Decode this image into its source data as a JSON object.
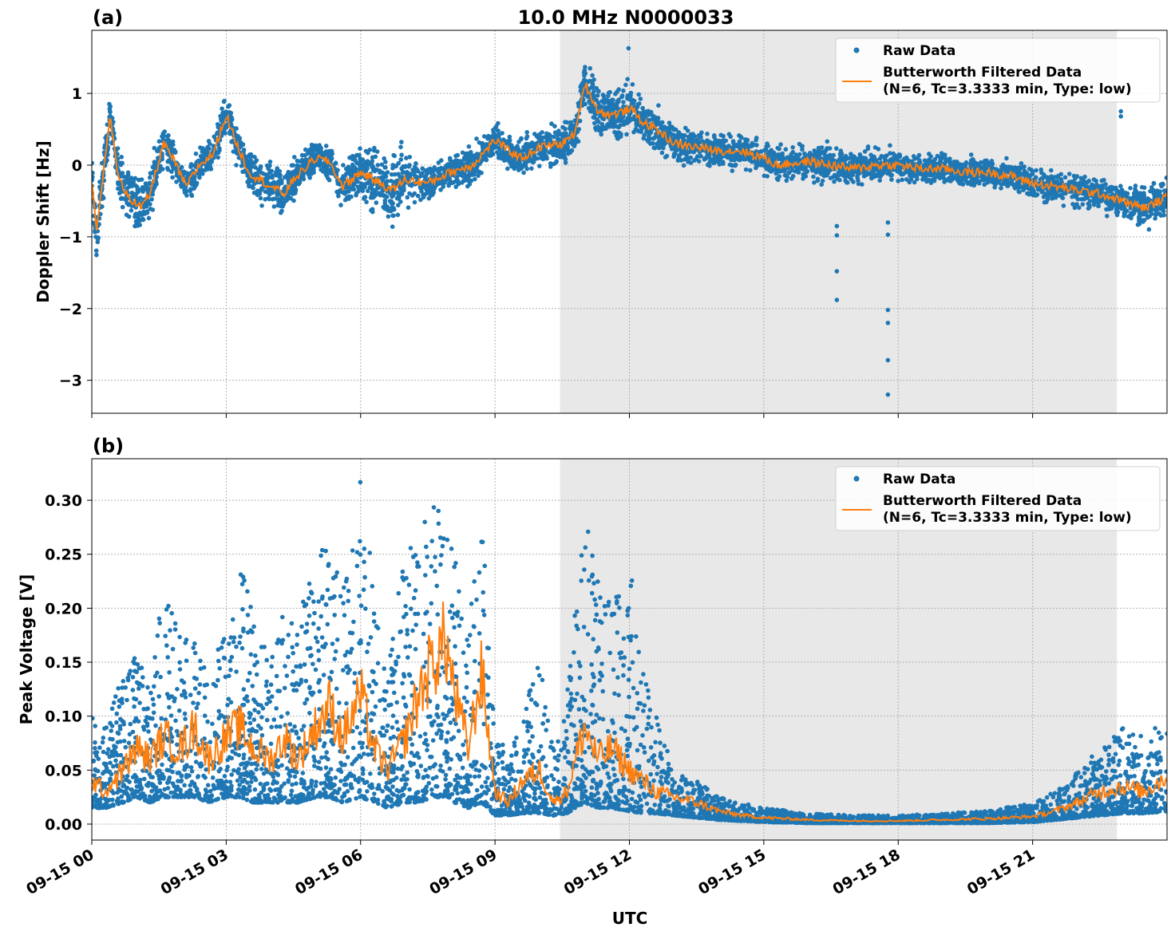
{
  "chart_data": [
    {
      "type": "scatter",
      "panel_label": "(a)",
      "title": "10.0 MHz N0000033",
      "ylabel": "Doppler Shift [Hz]",
      "xlabel": "",
      "x_unit": "hours UTC on 09-15",
      "xlim": [
        0,
        24
      ],
      "ylim": [
        -3.46,
        1.88
      ],
      "x_ticks": [
        0,
        3,
        6,
        9,
        12,
        15,
        18,
        21
      ],
      "x_tick_labels": [
        "09-15 00",
        "09-15 03",
        "09-15 06",
        "09-15 09",
        "09-15 12",
        "09-15 15",
        "09-15 18",
        "09-15 21"
      ],
      "y_ticks": [
        1,
        0,
        -1,
        -2,
        -3
      ],
      "y_tick_labels": [
        "1",
        "0",
        "−1",
        "−2",
        "−3"
      ],
      "grid": true,
      "shaded_interval": [
        10.45,
        22.88
      ],
      "legend_placement": "top-right",
      "series": [
        {
          "name": "Raw Data",
          "kind": "points",
          "color": "#1f77b4"
        },
        {
          "name": "Butterworth Filtered Data",
          "name_line2": "(N=6, Tc=3.3333 min, Type: low)",
          "kind": "line",
          "color": "#ff7f0e"
        }
      ],
      "filtered": {
        "x": [
          0,
          0.1,
          0.3,
          0.4,
          0.6,
          0.9,
          1.1,
          1.3,
          1.6,
          1.8,
          2.1,
          2.4,
          2.7,
          3.0,
          3.2,
          3.5,
          4,
          4.3,
          4.5,
          5,
          5.3,
          5.6,
          6.0,
          6.3,
          6.7,
          7.0,
          7.5,
          8,
          8.5,
          9.0,
          9.3,
          9.6,
          10,
          10.5,
          10.8,
          11.0,
          11.3,
          11.6,
          11.9,
          12.0,
          12.3,
          12.6,
          13,
          13.5,
          14,
          14.5,
          15,
          15.3,
          16,
          16.5,
          17,
          17.5,
          18,
          18.5,
          19,
          19.5,
          20,
          20.5,
          21,
          21.5,
          22,
          22.5,
          23,
          23.5,
          24
        ],
        "y": [
          -0.2,
          -0.95,
          0.1,
          0.7,
          -0.2,
          -0.5,
          -0.6,
          -0.4,
          0.3,
          0.1,
          -0.3,
          0.0,
          0.15,
          0.7,
          0.35,
          -0.1,
          -0.3,
          -0.4,
          -0.2,
          0.1,
          0.05,
          -0.3,
          -0.1,
          -0.2,
          -0.35,
          -0.2,
          -0.25,
          -0.1,
          0.0,
          0.35,
          0.2,
          0.1,
          0.25,
          0.3,
          0.45,
          1.15,
          0.75,
          0.7,
          0.75,
          0.8,
          0.6,
          0.5,
          0.3,
          0.25,
          0.2,
          0.2,
          0.1,
          0.0,
          0.05,
          0.0,
          -0.05,
          0.0,
          0.0,
          -0.05,
          -0.05,
          -0.1,
          -0.1,
          -0.15,
          -0.25,
          -0.3,
          -0.35,
          -0.4,
          -0.5,
          -0.6,
          -0.45
        ]
      },
      "raw_spread": [
        0.5,
        0.45,
        0.45,
        0.4,
        0.4,
        0.55,
        0.55,
        0.45,
        0.35,
        0.35,
        0.3,
        0.3,
        0.3,
        0.4,
        0.35,
        0.35,
        0.4,
        0.4,
        0.35,
        0.3,
        0.3,
        0.35,
        0.45,
        0.6,
        0.75,
        0.5,
        0.3,
        0.25,
        0.3,
        0.3,
        0.3,
        0.3,
        0.35,
        0.4,
        0.4,
        0.4,
        0.45,
        0.45,
        0.45,
        0.45,
        0.4,
        0.4,
        0.35,
        0.3,
        0.3,
        0.3,
        0.3,
        0.3,
        0.3,
        0.35,
        0.3,
        0.25,
        0.25,
        0.25,
        0.25,
        0.25,
        0.25,
        0.25,
        0.3,
        0.3,
        0.3,
        0.3,
        0.35,
        0.4,
        0.4
      ],
      "raw_outliers": {
        "x": [
          16.63,
          16.63,
          16.63,
          16.63,
          17.77,
          17.77,
          17.77,
          17.77,
          17.77,
          17.77,
          22.97,
          22.97,
          11.98
        ],
        "y": [
          -0.85,
          -0.98,
          -1.48,
          -1.88,
          -0.8,
          -0.97,
          -2.02,
          -2.2,
          -2.72,
          -3.2,
          0.75,
          0.68,
          1.63
        ]
      }
    },
    {
      "type": "scatter",
      "panel_label": "(b)",
      "title": "",
      "ylabel": "Peak Voltage [V]",
      "xlabel": "UTC",
      "x_unit": "hours UTC on 09-15",
      "xlim": [
        0,
        24
      ],
      "ylim": [
        -0.0148,
        0.3385
      ],
      "x_ticks": [
        0,
        3,
        6,
        9,
        12,
        15,
        18,
        21
      ],
      "x_tick_labels": [
        "09-15 00",
        "09-15 03",
        "09-15 06",
        "09-15 09",
        "09-15 12",
        "09-15 15",
        "09-15 18",
        "09-15 21"
      ],
      "y_ticks": [
        0.3,
        0.25,
        0.2,
        0.15,
        0.1,
        0.05,
        0.0
      ],
      "y_tick_labels": [
        "0.30",
        "0.25",
        "0.20",
        "0.15",
        "0.10",
        "0.05",
        "0.00"
      ],
      "grid": true,
      "shaded_interval": [
        10.45,
        22.88
      ],
      "legend_placement": "top-right",
      "series": [
        {
          "name": "Raw Data",
          "kind": "points",
          "color": "#1f77b4"
        },
        {
          "name": "Butterworth Filtered Data",
          "name_line2": "(N=6, Tc=3.3333 min, Type: low)",
          "kind": "line",
          "color": "#ff7f0e"
        }
      ],
      "filtered": {
        "x": [
          0,
          0.3,
          0.7,
          1,
          1.3,
          1.6,
          2,
          2.3,
          2.6,
          3,
          3.3,
          3.6,
          4,
          4.3,
          4.6,
          5,
          5.3,
          5.6,
          6,
          6.3,
          6.6,
          7,
          7.3,
          7.6,
          7.9,
          8.1,
          8.4,
          8.7,
          9.0,
          9.3,
          9.6,
          10,
          10.3,
          10.6,
          11,
          11.3,
          11.6,
          12,
          12.3,
          12.6,
          13,
          13.5,
          14,
          14.5,
          15,
          16,
          17,
          18,
          19,
          20,
          21,
          21.5,
          22,
          22.5,
          23,
          23.5,
          24
        ],
        "y": [
          0.04,
          0.03,
          0.05,
          0.07,
          0.06,
          0.08,
          0.07,
          0.09,
          0.06,
          0.08,
          0.09,
          0.07,
          0.06,
          0.08,
          0.06,
          0.09,
          0.11,
          0.08,
          0.12,
          0.07,
          0.05,
          0.08,
          0.12,
          0.15,
          0.17,
          0.12,
          0.07,
          0.14,
          0.03,
          0.02,
          0.04,
          0.05,
          0.02,
          0.03,
          0.09,
          0.06,
          0.07,
          0.05,
          0.04,
          0.03,
          0.025,
          0.02,
          0.012,
          0.008,
          0.006,
          0.004,
          0.003,
          0.003,
          0.004,
          0.005,
          0.007,
          0.012,
          0.02,
          0.03,
          0.035,
          0.03,
          0.045
        ]
      },
      "raw_low": [
        0.015,
        0.015,
        0.02,
        0.025,
        0.02,
        0.025,
        0.025,
        0.025,
        0.02,
        0.025,
        0.025,
        0.02,
        0.02,
        0.02,
        0.02,
        0.025,
        0.025,
        0.02,
        0.025,
        0.02,
        0.015,
        0.02,
        0.02,
        0.025,
        0.025,
        0.02,
        0.015,
        0.02,
        0.008,
        0.008,
        0.01,
        0.01,
        0.008,
        0.01,
        0.02,
        0.015,
        0.015,
        0.012,
        0.01,
        0.01,
        0.008,
        0.006,
        0.004,
        0.003,
        0.002,
        0.001,
        0.001,
        0.001,
        0.001,
        0.001,
        0.002,
        0.004,
        0.006,
        0.008,
        0.01,
        0.01,
        0.012
      ],
      "raw_high": [
        0.1,
        0.09,
        0.14,
        0.16,
        0.12,
        0.236,
        0.17,
        0.18,
        0.14,
        0.18,
        0.245,
        0.2,
        0.15,
        0.2,
        0.19,
        0.25,
        0.26,
        0.23,
        0.32,
        0.22,
        0.14,
        0.27,
        0.26,
        0.31,
        0.28,
        0.26,
        0.18,
        0.295,
        0.08,
        0.07,
        0.09,
        0.17,
        0.08,
        0.12,
        0.29,
        0.23,
        0.2,
        0.25,
        0.15,
        0.1,
        0.05,
        0.04,
        0.025,
        0.02,
        0.015,
        0.01,
        0.008,
        0.008,
        0.01,
        0.012,
        0.02,
        0.03,
        0.05,
        0.07,
        0.09,
        0.08,
        0.105
      ]
    }
  ]
}
